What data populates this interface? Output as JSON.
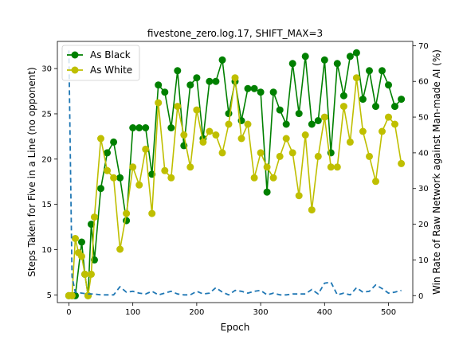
{
  "chart_data": {
    "type": "line",
    "title": "fivestone_zero.log.17, SHIFT_MAX=3",
    "xlabel": "Epoch",
    "ylabel_left": "Steps Taken for Five in a Line (no opponent)",
    "ylabel_right": "Win Rate of Raw Network against Man-made AI (%)",
    "xlim": [
      -18,
      538
    ],
    "ylim_left": [
      4.15,
      33.0
    ],
    "ylim_right": [
      -1.95,
      71.2
    ],
    "xticks": [
      0,
      100,
      200,
      300,
      400,
      500
    ],
    "yticks_left": [
      5,
      10,
      15,
      20,
      25,
      30
    ],
    "yticks_right": [
      0,
      10,
      20,
      30,
      40,
      50,
      60,
      70
    ],
    "legend": {
      "position": "top-left"
    },
    "colors": {
      "black": "#008000",
      "white": "#bfbf00",
      "steps": "#1f77b4"
    },
    "series": [
      {
        "name": "As Black",
        "axis": "right",
        "x": [
          0,
          5,
          10,
          20,
          25,
          30,
          35,
          40,
          50,
          60,
          70,
          80,
          90,
          100,
          110,
          120,
          130,
          140,
          150,
          160,
          170,
          180,
          190,
          200,
          210,
          220,
          230,
          240,
          250,
          260,
          270,
          280,
          290,
          300,
          310,
          320,
          330,
          340,
          350,
          360,
          370,
          380,
          390,
          400,
          410,
          420,
          430,
          440,
          450,
          460,
          470,
          480,
          490,
          500,
          510,
          520
        ],
        "values": [
          0,
          0,
          0,
          15,
          6,
          0,
          20,
          10,
          30,
          40,
          43,
          33,
          21,
          47,
          47,
          47,
          34,
          59,
          57,
          47,
          63,
          42,
          59,
          61,
          44,
          60,
          60,
          66,
          51,
          60,
          49,
          58,
          58,
          57,
          29,
          57,
          52,
          48,
          65,
          51,
          67,
          48,
          49,
          66,
          40,
          65,
          56,
          67,
          68,
          55,
          63,
          53,
          63,
          59,
          53,
          55
        ]
      },
      {
        "name": "As White",
        "axis": "right",
        "x": [
          0,
          5,
          10,
          15,
          20,
          25,
          30,
          35,
          40,
          50,
          60,
          70,
          80,
          90,
          100,
          110,
          120,
          130,
          140,
          150,
          160,
          170,
          180,
          190,
          200,
          210,
          220,
          230,
          240,
          250,
          260,
          270,
          280,
          290,
          300,
          310,
          320,
          330,
          340,
          350,
          360,
          370,
          380,
          390,
          400,
          410,
          420,
          430,
          440,
          450,
          460,
          470,
          480,
          490,
          500,
          510,
          520
        ],
        "values": [
          0,
          0,
          16,
          12,
          11,
          6,
          0,
          6,
          22,
          44,
          35,
          33,
          13,
          23,
          36,
          31,
          41,
          23,
          54,
          35,
          33,
          53,
          45,
          36,
          52,
          43,
          46,
          45,
          40,
          48,
          61,
          44,
          48,
          33,
          40,
          36,
          33,
          39,
          44,
          40,
          28,
          45,
          24,
          39,
          50,
          36,
          36,
          53,
          43,
          61,
          46,
          39,
          32,
          46,
          50,
          48,
          37
        ]
      },
      {
        "name": "Steps",
        "axis": "left",
        "dashed": true,
        "x": [
          0,
          5,
          10,
          20,
          30,
          40,
          50,
          60,
          70,
          80,
          90,
          100,
          110,
          120,
          130,
          140,
          150,
          160,
          170,
          180,
          190,
          200,
          210,
          220,
          230,
          240,
          250,
          260,
          270,
          280,
          290,
          300,
          310,
          320,
          330,
          340,
          350,
          360,
          370,
          380,
          390,
          400,
          410,
          420,
          430,
          440,
          450,
          460,
          470,
          480,
          490,
          500,
          510,
          520
        ],
        "values": [
          32,
          7,
          5.3,
          5.2,
          5.1,
          5.1,
          5.0,
          5.0,
          5.0,
          5.9,
          5.3,
          5.4,
          5.2,
          5.1,
          5.4,
          5.0,
          5.2,
          5.4,
          5.1,
          5.0,
          5.0,
          5.4,
          5.1,
          5.2,
          5.8,
          5.3,
          5.0,
          5.5,
          5.4,
          5.2,
          5.4,
          5.5,
          5.0,
          5.2,
          5.0,
          5.0,
          5.1,
          5.1,
          5.1,
          5.6,
          5.1,
          6.3,
          6.4,
          5.0,
          5.2,
          5.0,
          5.8,
          5.3,
          5.4,
          6.1,
          5.7,
          5.2,
          5.3,
          5.5
        ]
      }
    ]
  }
}
